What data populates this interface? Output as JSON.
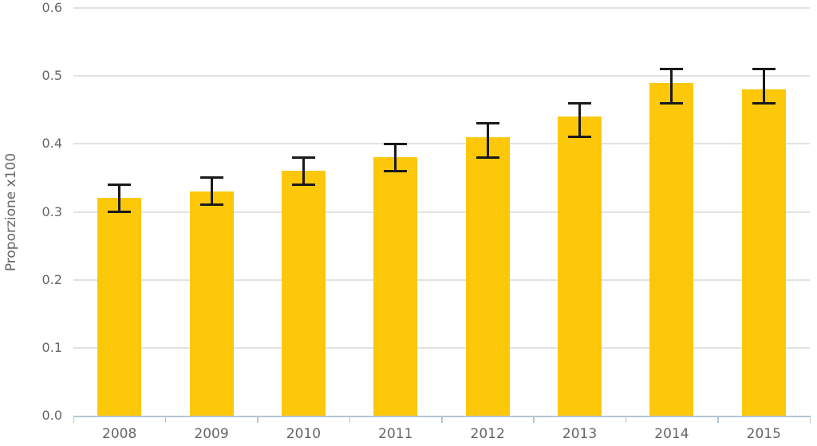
{
  "chart_data": {
    "type": "bar",
    "title": "",
    "xlabel": "",
    "ylabel": "Proporzione x100",
    "categories": [
      "2008",
      "2009",
      "2010",
      "2011",
      "2012",
      "2013",
      "2014",
      "2015"
    ],
    "series": [
      {
        "name": "Proporzione x100",
        "values": [
          0.32,
          0.33,
          0.36,
          0.38,
          0.41,
          0.44,
          0.49,
          0.48
        ],
        "error_low": [
          0.3,
          0.31,
          0.34,
          0.36,
          0.38,
          0.41,
          0.46,
          0.46
        ],
        "error_high": [
          0.34,
          0.35,
          0.38,
          0.4,
          0.43,
          0.46,
          0.51,
          0.51
        ]
      }
    ],
    "ylim": [
      0,
      0.6
    ],
    "ytick_labels": [
      "0.0",
      "0.1",
      "0.2",
      "0.3",
      "0.4",
      "0.5",
      "0.6"
    ],
    "grid": true,
    "legend": false,
    "colors": {
      "bar": "#FDC70A",
      "error_bar": "#1a1a1a",
      "gridline": "#e2e2e2",
      "axis_line": "#b3c6d3",
      "text": "#666666"
    }
  }
}
